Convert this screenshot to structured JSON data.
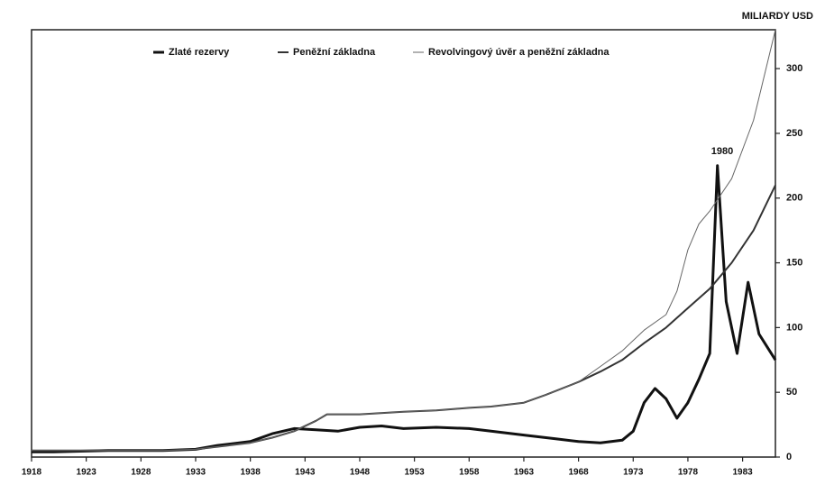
{
  "chart_data": {
    "type": "line",
    "y_label": "MILIARDY USD",
    "annotation": "1980",
    "xlim": [
      1918,
      1986
    ],
    "xticks": [
      1918,
      1923,
      1928,
      1933,
      1938,
      1943,
      1948,
      1953,
      1958,
      1963,
      1968,
      1973,
      1978,
      1983
    ],
    "ylim": [
      0,
      330
    ],
    "yticks": [
      0,
      50,
      100,
      150,
      200,
      250,
      300
    ],
    "series": [
      {
        "name": "Zlaté rezervy",
        "color": "#111111",
        "x": [
          1918,
          1920,
          1925,
          1930,
          1933,
          1935,
          1938,
          1940,
          1942,
          1944,
          1946,
          1948,
          1950,
          1952,
          1955,
          1958,
          1960,
          1963,
          1966,
          1968,
          1970,
          1972,
          1973,
          1974,
          1975,
          1976,
          1977,
          1978,
          1979,
          1980,
          1980.7,
          1981.5,
          1982.5,
          1983.5,
          1984.5,
          1986
        ],
        "values": [
          4,
          4,
          5,
          5,
          6,
          9,
          12,
          18,
          22,
          21,
          20,
          23,
          24,
          22,
          23,
          22,
          20,
          17,
          14,
          12,
          11,
          13,
          20,
          42,
          53,
          45,
          30,
          42,
          60,
          80,
          225,
          120,
          80,
          135,
          95,
          75
        ]
      },
      {
        "name": "Peněžní základna",
        "color": "#333333",
        "x": [
          1918,
          1925,
          1930,
          1933,
          1936,
          1938,
          1940,
          1942,
          1944,
          1945,
          1948,
          1952,
          1955,
          1958,
          1960,
          1963,
          1965,
          1968,
          1970,
          1972,
          1974,
          1976,
          1978,
          1980,
          1982,
          1984,
          1986
        ],
        "values": [
          5,
          5,
          5,
          6,
          9,
          11,
          15,
          20,
          28,
          33,
          33,
          35,
          36,
          38,
          39,
          42,
          48,
          58,
          66,
          75,
          88,
          100,
          115,
          130,
          150,
          175,
          210
        ]
      },
      {
        "name": "Revolvingový úvěr a peněžní základna",
        "color": "#666666",
        "x": [
          1918,
          1925,
          1930,
          1933,
          1936,
          1938,
          1940,
          1942,
          1944,
          1945,
          1948,
          1952,
          1955,
          1958,
          1960,
          1963,
          1965,
          1968,
          1970,
          1972,
          1974,
          1976,
          1977,
          1978,
          1979,
          1980,
          1982,
          1984,
          1986
        ],
        "values": [
          5,
          5,
          5,
          6,
          9,
          11,
          15,
          20,
          28,
          33,
          33,
          35,
          36,
          38,
          39,
          42,
          48,
          58,
          70,
          82,
          98,
          110,
          128,
          160,
          180,
          190,
          215,
          260,
          330
        ]
      }
    ]
  }
}
